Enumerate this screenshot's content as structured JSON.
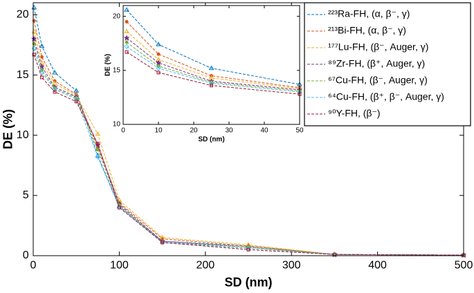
{
  "chart_data": [
    {
      "type": "line",
      "xlabel": "SD (nm)",
      "ylabel": "DE (%)",
      "x": [
        1,
        10,
        25,
        50,
        75,
        100,
        150,
        250,
        350,
        500
      ],
      "xlim": [
        0,
        500
      ],
      "xticks": [
        0,
        100,
        200,
        300,
        400,
        500
      ],
      "ylim": [
        0,
        21
      ],
      "yticks": [
        0,
        5,
        10,
        15,
        20
      ],
      "legend": "upper right",
      "series": [
        {
          "name": "²²³Ra-FH, (α, β⁻, γ)",
          "color": "#0072bd",
          "values": [
            20.6,
            17.4,
            15.2,
            13.7,
            8.3,
            4.1,
            1.2,
            0.8,
            0.1,
            0.05
          ]
        },
        {
          "name": "²¹³Bi-FH, (α, β⁻, γ)",
          "color": "#d95319",
          "values": [
            19.5,
            16.5,
            14.5,
            13.4,
            9.0,
            4.4,
            1.4,
            0.8,
            0.1,
            0.05
          ]
        },
        {
          "name": "¹⁷⁷Lu-FH, (β⁻, Auger, γ)",
          "color": "#edb120",
          "values": [
            18.6,
            16.0,
            14.3,
            13.3,
            10.1,
            4.6,
            1.5,
            0.9,
            0.1,
            0.05
          ]
        },
        {
          "name": "⁸⁹Zr-FH, (β⁺, Auger, γ)",
          "color": "#7e2f8e",
          "values": [
            18.0,
            15.7,
            14.0,
            13.2,
            9.2,
            4.3,
            1.2,
            0.7,
            0.1,
            0.05
          ]
        },
        {
          "name": "⁶⁷Cu-FH, (β⁻, Auger, γ)",
          "color": "#77ac30",
          "values": [
            17.6,
            15.4,
            13.9,
            13.1,
            8.8,
            4.2,
            1.1,
            0.7,
            0.1,
            0.05
          ]
        },
        {
          "name": "⁶⁴Cu-FH, (β⁺, β⁻, Auger, γ)",
          "color": "#4dbeee",
          "values": [
            17.2,
            15.2,
            13.8,
            13.0,
            8.2,
            4.0,
            1.1,
            0.6,
            0.1,
            0.05
          ]
        },
        {
          "name": "⁹⁰Y-FH, (β⁻)",
          "color": "#a2142f",
          "values": [
            16.7,
            14.8,
            13.6,
            12.8,
            9.3,
            4.0,
            1.1,
            0.5,
            0.1,
            0.05
          ]
        }
      ]
    },
    {
      "type": "line",
      "xlabel": "SD (nm)",
      "ylabel": "DE (%)",
      "x": [
        1,
        10,
        25,
        50
      ],
      "xlim": [
        0,
        50
      ],
      "xticks": [
        0,
        10,
        20,
        30,
        40,
        50
      ],
      "ylim": [
        10,
        21
      ],
      "yticks": [
        10,
        15,
        20
      ],
      "series": [
        {
          "color": "#0072bd",
          "values": [
            20.6,
            17.4,
            15.2,
            13.7
          ]
        },
        {
          "color": "#d95319",
          "values": [
            19.5,
            16.5,
            14.5,
            13.4
          ]
        },
        {
          "color": "#edb120",
          "values": [
            18.6,
            16.0,
            14.3,
            13.3
          ]
        },
        {
          "color": "#7e2f8e",
          "values": [
            18.0,
            15.7,
            14.0,
            13.2
          ]
        },
        {
          "color": "#77ac30",
          "values": [
            17.6,
            15.4,
            13.9,
            13.1
          ]
        },
        {
          "color": "#4dbeee",
          "values": [
            17.2,
            15.2,
            13.8,
            13.0
          ]
        },
        {
          "color": "#a2142f",
          "values": [
            16.7,
            14.8,
            13.6,
            12.8
          ]
        }
      ]
    }
  ]
}
